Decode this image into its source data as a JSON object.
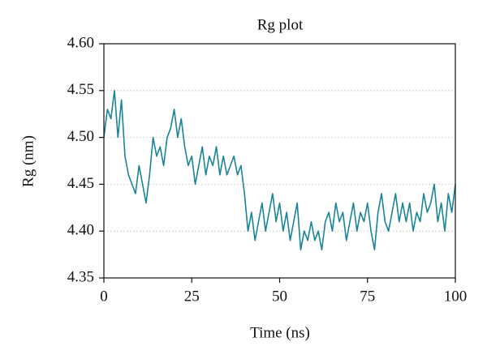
{
  "chart_data": {
    "type": "line",
    "title": "Rg plot",
    "x_label": "Time (ns)",
    "y_label": "Rg (nm)",
    "x": [
      0,
      1,
      2,
      3,
      4,
      5,
      6,
      7,
      8,
      9,
      10,
      11,
      12,
      13,
      14,
      15,
      16,
      17,
      18,
      19,
      20,
      21,
      22,
      23,
      24,
      25,
      26,
      27,
      28,
      29,
      30,
      31,
      32,
      33,
      34,
      35,
      36,
      37,
      38,
      39,
      40,
      41,
      42,
      43,
      44,
      45,
      46,
      47,
      48,
      49,
      50,
      51,
      52,
      53,
      54,
      55,
      56,
      57,
      58,
      59,
      60,
      61,
      62,
      63,
      64,
      65,
      66,
      67,
      68,
      69,
      70,
      71,
      72,
      73,
      74,
      75,
      76,
      77,
      78,
      79,
      80,
      81,
      82,
      83,
      84,
      85,
      86,
      87,
      88,
      89,
      90,
      91,
      92,
      93,
      94,
      95,
      96,
      97,
      98,
      99,
      100
    ],
    "values": [
      4.5,
      4.53,
      4.52,
      4.55,
      4.5,
      4.54,
      4.48,
      4.46,
      4.45,
      4.44,
      4.47,
      4.45,
      4.43,
      4.46,
      4.5,
      4.48,
      4.49,
      4.47,
      4.5,
      4.51,
      4.53,
      4.5,
      4.52,
      4.49,
      4.47,
      4.48,
      4.45,
      4.47,
      4.49,
      4.46,
      4.48,
      4.47,
      4.49,
      4.46,
      4.48,
      4.46,
      4.47,
      4.48,
      4.46,
      4.47,
      4.44,
      4.4,
      4.42,
      4.39,
      4.41,
      4.43,
      4.4,
      4.42,
      4.44,
      4.41,
      4.43,
      4.4,
      4.42,
      4.39,
      4.41,
      4.43,
      4.38,
      4.4,
      4.39,
      4.41,
      4.39,
      4.4,
      4.38,
      4.41,
      4.42,
      4.4,
      4.43,
      4.41,
      4.42,
      4.39,
      4.41,
      4.43,
      4.4,
      4.42,
      4.41,
      4.43,
      4.4,
      4.38,
      4.42,
      4.44,
      4.41,
      4.4,
      4.42,
      4.44,
      4.41,
      4.43,
      4.41,
      4.43,
      4.4,
      4.42,
      4.41,
      4.44,
      4.42,
      4.43,
      4.45,
      4.41,
      4.43,
      4.4,
      4.44,
      4.42,
      4.45
    ],
    "color": "#1a8499",
    "xlim": [
      0,
      100
    ],
    "xticks": [
      0,
      25,
      50,
      75,
      100
    ],
    "ylim": [
      4.35,
      4.6
    ],
    "yticks": [
      4.35,
      {
        "value": 4.4,
        "label": "4.40"
      },
      4.45,
      {
        "value": 4.5,
        "label": "4.50"
      },
      4.55,
      {
        "value": 4.6,
        "label": "4.60"
      }
    ],
    "grid": true
  }
}
